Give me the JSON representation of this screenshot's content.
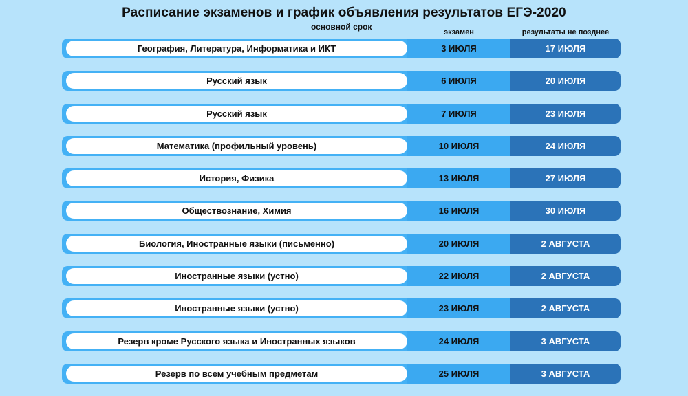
{
  "title": "Расписание экзаменов и график объявления результатов ЕГЭ-2020",
  "subtitle": "основной срок",
  "columns": {
    "exam": "экзамен",
    "result": "результаты не позднее"
  },
  "rows": [
    {
      "subject": "География, Литература, Информатика и ИКТ",
      "exam": "3 ИЮЛЯ",
      "result": "17 ИЮЛЯ"
    },
    {
      "subject": "Русский язык",
      "exam": "6 ИЮЛЯ",
      "result": "20 ИЮЛЯ"
    },
    {
      "subject": "Русский язык",
      "exam": "7 ИЮЛЯ",
      "result": "23 ИЮЛЯ"
    },
    {
      "subject": "Математика (профильный уровень)",
      "exam": "10 ИЮЛЯ",
      "result": "24 ИЮЛЯ"
    },
    {
      "subject": "История, Физика",
      "exam": "13 ИЮЛЯ",
      "result": "27 ИЮЛЯ"
    },
    {
      "subject": "Обществознание, Химия",
      "exam": "16 ИЮЛЯ",
      "result": "30 ИЮЛЯ"
    },
    {
      "subject": "Биология, Иностранные языки (письменно)",
      "exam": "20 ИЮЛЯ",
      "result": "2 АВГУСТА"
    },
    {
      "subject": "Иностранные языки (устно)",
      "exam": "22 ИЮЛЯ",
      "result": "2 АВГУСТА"
    },
    {
      "subject": "Иностранные языки (устно)",
      "exam": "23 ИЮЛЯ",
      "result": "2 АВГУСТА"
    },
    {
      "subject": "Резерв кроме Русского языка и Иностранных языков",
      "exam": "24 ИЮЛЯ",
      "result": "3 АВГУСТА"
    },
    {
      "subject": "Резерв по всем учебным предметам",
      "exam": "25 ИЮЛЯ",
      "result": "3 АВГУСТА"
    }
  ]
}
